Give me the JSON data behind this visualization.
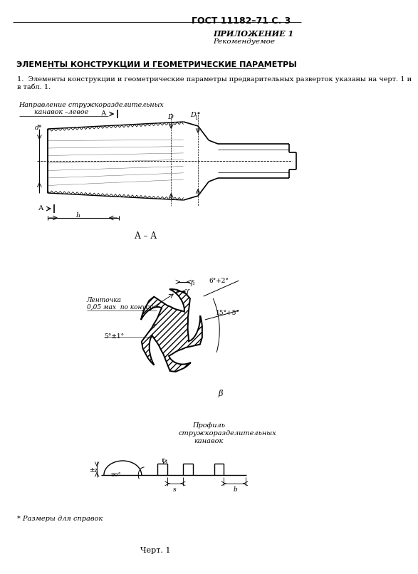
{
  "title_right": "ГОСТ 11182–71 С. 3",
  "appendix_title": "ПРИЛОЖЕНИЕ 1",
  "appendix_sub": "Рекомендуемое",
  "section_title": "ЭЛЕМЕНТЫ КОНСТРУКЦИИ И ГЕОМЕТРИЧЕСКИЕ ПАРАМЕТРЫ",
  "para_line1": "1.  Элементы конструкции и геометрические параметры предварительных разверток указаны на черт. 1 и",
  "para_line2": "в табл. 1.",
  "chart_label": "Черт. 1",
  "bg": "#ffffff"
}
